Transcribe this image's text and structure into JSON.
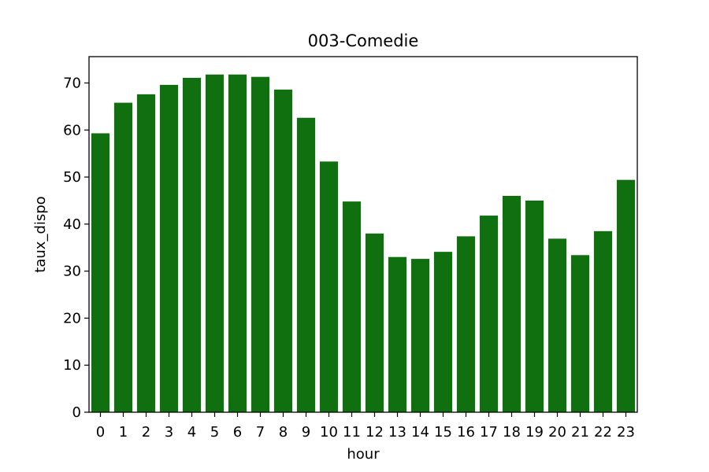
{
  "chart_data": {
    "type": "bar",
    "title": "003-Comedie",
    "xlabel": "hour",
    "ylabel": "taux_dispo",
    "categories": [
      "0",
      "1",
      "2",
      "3",
      "4",
      "5",
      "6",
      "7",
      "8",
      "9",
      "10",
      "11",
      "12",
      "13",
      "14",
      "15",
      "16",
      "17",
      "18",
      "19",
      "20",
      "21",
      "22",
      "23"
    ],
    "values": [
      59.3,
      65.8,
      67.6,
      69.6,
      71.1,
      71.8,
      71.8,
      71.3,
      68.6,
      62.6,
      53.3,
      44.8,
      38.0,
      33.0,
      32.6,
      34.1,
      37.4,
      41.8,
      46.0,
      45.0,
      36.9,
      33.4,
      38.5,
      49.4
    ],
    "ylim": [
      0,
      75.6
    ],
    "yticks": [
      0,
      10,
      20,
      30,
      40,
      50,
      60,
      70
    ],
    "grid": false,
    "legend": "none",
    "bar_color": "#107010"
  }
}
